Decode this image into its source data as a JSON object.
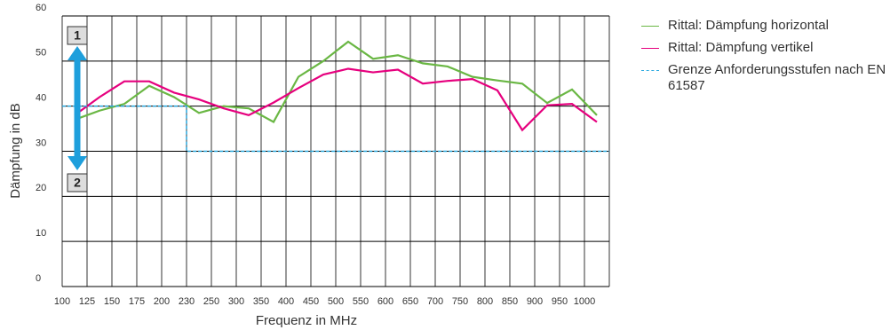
{
  "chart_data": {
    "type": "line",
    "xlabel": "Frequenz in MHz",
    "ylabel": "Dämpfung in dB",
    "categories": [
      "100",
      "125",
      "150",
      "175",
      "200",
      "230",
      "250",
      "300",
      "350",
      "400",
      "450",
      "500",
      "550",
      "600",
      "650",
      "700",
      "750",
      "800",
      "850",
      "900",
      "950",
      "1000"
    ],
    "ylim": [
      0,
      60
    ],
    "yticks": [
      0,
      10,
      20,
      30,
      40,
      50,
      60
    ],
    "grid": true,
    "series": [
      {
        "name": "Rittal: Dämpfung horizontal",
        "color": "#6ab744",
        "style": "solid",
        "values": [
          37,
          39,
          40.5,
          44.5,
          42,
          38.5,
          40,
          39.5,
          36.5,
          46.5,
          50,
          54.3,
          50.5,
          51.3,
          49.5,
          48.8,
          46.5,
          45.7,
          45,
          40.7,
          43.7,
          38
        ]
      },
      {
        "name": "Rittal: Dämpfung vertikel",
        "color": "#e6007e",
        "style": "solid",
        "values": [
          38,
          42,
          45.5,
          45.5,
          43,
          41.5,
          39.5,
          38,
          40.8,
          44,
          47,
          48.3,
          47.5,
          48.1,
          45,
          45.6,
          46,
          43.5,
          34.7,
          40.2,
          40.5,
          36.5
        ]
      },
      {
        "name": "Grenze Anforderungsstufen nach EN 61587",
        "color": "#29a9e0",
        "style": "dashed",
        "step": true,
        "values": [
          40,
          40,
          40,
          40,
          40,
          30,
          30,
          30,
          30,
          30,
          30,
          30,
          30,
          30,
          30,
          30,
          30,
          30,
          30,
          30,
          30,
          30
        ]
      }
    ],
    "annotations": [
      "1",
      "2"
    ]
  }
}
